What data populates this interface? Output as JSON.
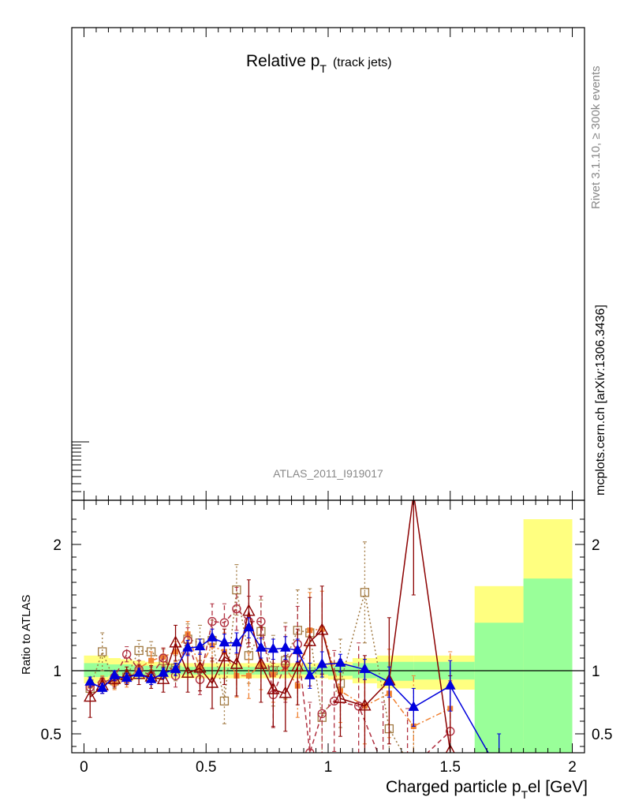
{
  "upper_panel": {
    "title_main": "Relative p",
    "title_sub": "T",
    "title_tail": "(track jets)",
    "analysis_id": "ATLAS_2011_I919017"
  },
  "side_labels": {
    "rivet": "Rivet 3.1.10, ≥ 300k events",
    "mcplots": "mcplots.cern.ch [arXiv:1306.3436]"
  },
  "ratio_panel": {
    "ylabel": "Ratio to ATLAS",
    "xlabel": "Charged particle p",
    "xlabel_sub": "T",
    "xlabel_tail": "el [GeV]"
  },
  "chart_data": {
    "type": "line",
    "xlim": [
      -0.05,
      2.05
    ],
    "ylim": [
      0.35,
      2.35
    ],
    "y_scale": "linear",
    "x_ticks": [
      {
        "value": 0,
        "label": "0"
      },
      {
        "value": 0.5,
        "label": "0.5"
      },
      {
        "value": 1,
        "label": "1"
      },
      {
        "value": 1.5,
        "label": "1.5"
      },
      {
        "value": 2,
        "label": "2"
      }
    ],
    "y_ticks": [
      {
        "value": 0.5,
        "label": "0.5"
      },
      {
        "value": 1,
        "label": "1"
      },
      {
        "value": 2,
        "label": "2"
      }
    ],
    "reference_line": 1.0,
    "bands": [
      {
        "x": [
          0.0,
          0.05
        ],
        "y1": [
          0.95,
          1.06
        ],
        "y2": [
          0.9,
          1.12
        ]
      },
      {
        "x": [
          0.05,
          0.1
        ],
        "y1": [
          0.95,
          1.06
        ],
        "y2": [
          0.9,
          1.12
        ]
      },
      {
        "x": [
          0.1,
          0.15
        ],
        "y1": [
          0.96,
          1.05
        ],
        "y2": [
          0.91,
          1.1
        ]
      },
      {
        "x": [
          0.15,
          0.2
        ],
        "y1": [
          0.96,
          1.05
        ],
        "y2": [
          0.92,
          1.09
        ]
      },
      {
        "x": [
          0.2,
          0.25
        ],
        "y1": [
          0.96,
          1.04
        ],
        "y2": [
          0.93,
          1.08
        ]
      },
      {
        "x": [
          0.25,
          0.3
        ],
        "y1": [
          0.96,
          1.04
        ],
        "y2": [
          0.93,
          1.07
        ]
      },
      {
        "x": [
          0.3,
          0.35
        ],
        "y1": [
          0.97,
          1.04
        ],
        "y2": [
          0.94,
          1.07
        ]
      },
      {
        "x": [
          0.35,
          0.4
        ],
        "y1": [
          0.97,
          1.04
        ],
        "y2": [
          0.94,
          1.06
        ]
      },
      {
        "x": [
          0.4,
          0.45
        ],
        "y1": [
          0.97,
          1.03
        ],
        "y2": [
          0.94,
          1.06
        ]
      },
      {
        "x": [
          0.45,
          0.5
        ],
        "y1": [
          0.97,
          1.03
        ],
        "y2": [
          0.94,
          1.06
        ]
      },
      {
        "x": [
          0.5,
          0.55
        ],
        "y1": [
          0.97,
          1.03
        ],
        "y2": [
          0.94,
          1.06
        ]
      },
      {
        "x": [
          0.55,
          0.6
        ],
        "y1": [
          0.97,
          1.03
        ],
        "y2": [
          0.94,
          1.06
        ]
      },
      {
        "x": [
          0.6,
          0.65
        ],
        "y1": [
          0.97,
          1.03
        ],
        "y2": [
          0.94,
          1.06
        ]
      },
      {
        "x": [
          0.65,
          0.7
        ],
        "y1": [
          0.97,
          1.03
        ],
        "y2": [
          0.94,
          1.06
        ]
      },
      {
        "x": [
          0.7,
          0.75
        ],
        "y1": [
          0.97,
          1.03
        ],
        "y2": [
          0.94,
          1.06
        ]
      },
      {
        "x": [
          0.75,
          0.8
        ],
        "y1": [
          0.97,
          1.03
        ],
        "y2": [
          0.94,
          1.06
        ]
      },
      {
        "x": [
          0.8,
          0.85
        ],
        "y1": [
          0.97,
          1.03
        ],
        "y2": [
          0.94,
          1.06
        ]
      },
      {
        "x": [
          0.85,
          0.9
        ],
        "y1": [
          0.97,
          1.03
        ],
        "y2": [
          0.94,
          1.06
        ]
      },
      {
        "x": [
          0.9,
          0.95
        ],
        "y1": [
          0.97,
          1.03
        ],
        "y2": [
          0.94,
          1.06
        ]
      },
      {
        "x": [
          0.95,
          1.0
        ],
        "y1": [
          0.97,
          1.03
        ],
        "y2": [
          0.94,
          1.06
        ]
      },
      {
        "x": [
          1.0,
          1.1
        ],
        "y1": [
          0.96,
          1.04
        ],
        "y2": [
          0.93,
          1.07
        ]
      },
      {
        "x": [
          1.1,
          1.2
        ],
        "y1": [
          0.94,
          1.06
        ],
        "y2": [
          0.9,
          1.1
        ]
      },
      {
        "x": [
          1.2,
          1.35
        ],
        "y1": [
          0.92,
          1.07
        ],
        "y2": [
          0.86,
          1.12
        ]
      },
      {
        "x": [
          1.35,
          1.6
        ],
        "y1": [
          0.93,
          1.07
        ],
        "y2": [
          0.85,
          1.12
        ]
      },
      {
        "x": [
          1.6,
          1.8
        ],
        "y1": [
          0.35,
          1.38
        ],
        "y2": [
          0.73,
          1.67
        ]
      },
      {
        "x": [
          1.8,
          2.0
        ],
        "y1": [
          0.35,
          1.73
        ],
        "y2": [
          0.35,
          2.2
        ]
      }
    ],
    "series": [
      {
        "color": "#0000dd",
        "marker": "triangle-filled",
        "line": "solid",
        "x": [
          0.025,
          0.075,
          0.125,
          0.175,
          0.225,
          0.275,
          0.325,
          0.375,
          0.425,
          0.475,
          0.525,
          0.575,
          0.625,
          0.675,
          0.725,
          0.775,
          0.825,
          0.875,
          0.925,
          0.975,
          1.05,
          1.15,
          1.25,
          1.35,
          1.5,
          1.7
        ],
        "y": [
          0.91,
          0.86,
          0.96,
          0.94,
          0.98,
          0.93,
          0.98,
          1.01,
          1.18,
          1.19,
          1.26,
          1.22,
          1.22,
          1.34,
          1.18,
          1.17,
          1.18,
          1.16,
          0.96,
          1.05,
          1.06,
          1.01,
          0.91,
          0.71,
          0.88,
          0.2
        ],
        "err": [
          0.04,
          0.04,
          0.04,
          0.04,
          0.04,
          0.04,
          0.04,
          0.05,
          0.06,
          0.06,
          0.07,
          0.07,
          0.08,
          0.08,
          0.08,
          0.08,
          0.09,
          0.09,
          0.1,
          0.1,
          0.07,
          0.08,
          0.12,
          0.15,
          0.2,
          0.3
        ]
      },
      {
        "color": "#8b0000",
        "marker": "triangle-open",
        "line": "solid",
        "x": [
          0.025,
          0.075,
          0.125,
          0.175,
          0.225,
          0.275,
          0.325,
          0.375,
          0.425,
          0.475,
          0.525,
          0.575,
          0.625,
          0.675,
          0.725,
          0.775,
          0.825,
          0.875,
          0.925,
          0.975,
          1.05,
          1.15,
          1.25,
          1.35,
          1.5
        ],
        "y": [
          0.79,
          0.88,
          0.93,
          0.96,
          0.97,
          0.95,
          0.93,
          1.22,
          0.98,
          1.02,
          0.9,
          1.11,
          1.05,
          1.47,
          1.05,
          0.85,
          0.82,
          1.03,
          1.23,
          1.32,
          0.78,
          0.72,
          0.92,
          2.4,
          0.36
        ],
        "err": [
          0.16,
          0.06,
          0.06,
          0.07,
          0.08,
          0.09,
          0.1,
          0.14,
          0.15,
          0.18,
          0.2,
          0.22,
          0.25,
          0.25,
          0.3,
          0.3,
          0.3,
          0.3,
          0.35,
          0.35,
          0.3,
          0.4,
          0.5,
          0.8,
          0.6
        ]
      },
      {
        "color": "#b03040",
        "marker": "circle-open",
        "line": "dashed",
        "x": [
          0.025,
          0.075,
          0.125,
          0.175,
          0.225,
          0.275,
          0.325,
          0.375,
          0.425,
          0.475,
          0.525,
          0.575,
          0.625,
          0.675,
          0.725,
          0.775,
          0.825,
          0.875,
          0.925,
          0.975,
          1.025,
          1.125,
          1.225,
          1.325,
          1.5
        ],
        "y": [
          0.87,
          0.9,
          0.95,
          1.13,
          1.01,
          0.96,
          1.1,
          0.96,
          1.24,
          0.93,
          1.39,
          1.38,
          1.49,
          1.39,
          1.39,
          0.81,
          1.05,
          1.21,
          0.35,
          0.66,
          0.76,
          0.72,
          0.25,
          0.2,
          0.52
        ],
        "err": [
          0.05,
          0.05,
          0.05,
          0.06,
          0.07,
          0.07,
          0.08,
          0.09,
          0.1,
          0.12,
          0.14,
          0.15,
          0.17,
          0.2,
          0.2,
          0.25,
          0.3,
          0.3,
          0.4,
          0.4,
          0.4,
          0.5,
          0.5,
          0.5,
          0.4
        ]
      },
      {
        "color": "#f08030",
        "marker": "square-filled",
        "line": "dashdot",
        "x": [
          0.025,
          0.075,
          0.125,
          0.175,
          0.225,
          0.275,
          0.325,
          0.375,
          0.425,
          0.475,
          0.525,
          0.575,
          0.625,
          0.675,
          0.725,
          0.775,
          0.825,
          0.875,
          0.925,
          0.975,
          1.05,
          1.15,
          1.25,
          1.35,
          1.5
        ],
        "y": [
          0.88,
          0.92,
          0.9,
          0.92,
          1.02,
          1.08,
          1.11,
          1.15,
          1.29,
          1.02,
          1.2,
          1.15,
          0.96,
          0.96,
          1.05,
          0.97,
          1.02,
          0.88,
          1.32,
          1.33,
          0.84,
          0.72,
          0.82,
          0.56,
          0.7
        ],
        "err": [
          0.04,
          0.04,
          0.05,
          0.05,
          0.06,
          0.07,
          0.07,
          0.08,
          0.1,
          0.12,
          0.13,
          0.15,
          0.17,
          0.18,
          0.2,
          0.22,
          0.25,
          0.25,
          0.3,
          0.3,
          0.25,
          0.3,
          0.35,
          0.4,
          0.45
        ]
      },
      {
        "color": "#a07840",
        "marker": "square-open",
        "line": "dotted",
        "x": [
          0.025,
          0.075,
          0.125,
          0.175,
          0.225,
          0.275,
          0.325,
          0.375,
          0.425,
          0.475,
          0.525,
          0.575,
          0.625,
          0.675,
          0.725,
          0.775,
          0.825,
          0.875,
          0.925,
          0.975,
          1.05,
          1.15,
          1.25,
          1.35
        ],
        "y": [
          0.86,
          1.15,
          0.92,
          0.95,
          1.16,
          1.15,
          1.08,
          1.02,
          1.25,
          1.22,
          1.24,
          0.76,
          1.64,
          1.12,
          1.31,
          1.0,
          1.08,
          1.32,
          1.3,
          0.63,
          0.9,
          1.62,
          0.54,
          0.2
        ],
        "err": [
          0.05,
          0.15,
          0.06,
          0.06,
          0.08,
          0.08,
          0.09,
          0.1,
          0.12,
          0.14,
          0.16,
          0.18,
          0.2,
          0.22,
          0.25,
          0.28,
          0.3,
          0.32,
          0.35,
          0.35,
          0.35,
          0.4,
          0.4,
          0.5
        ]
      }
    ]
  }
}
